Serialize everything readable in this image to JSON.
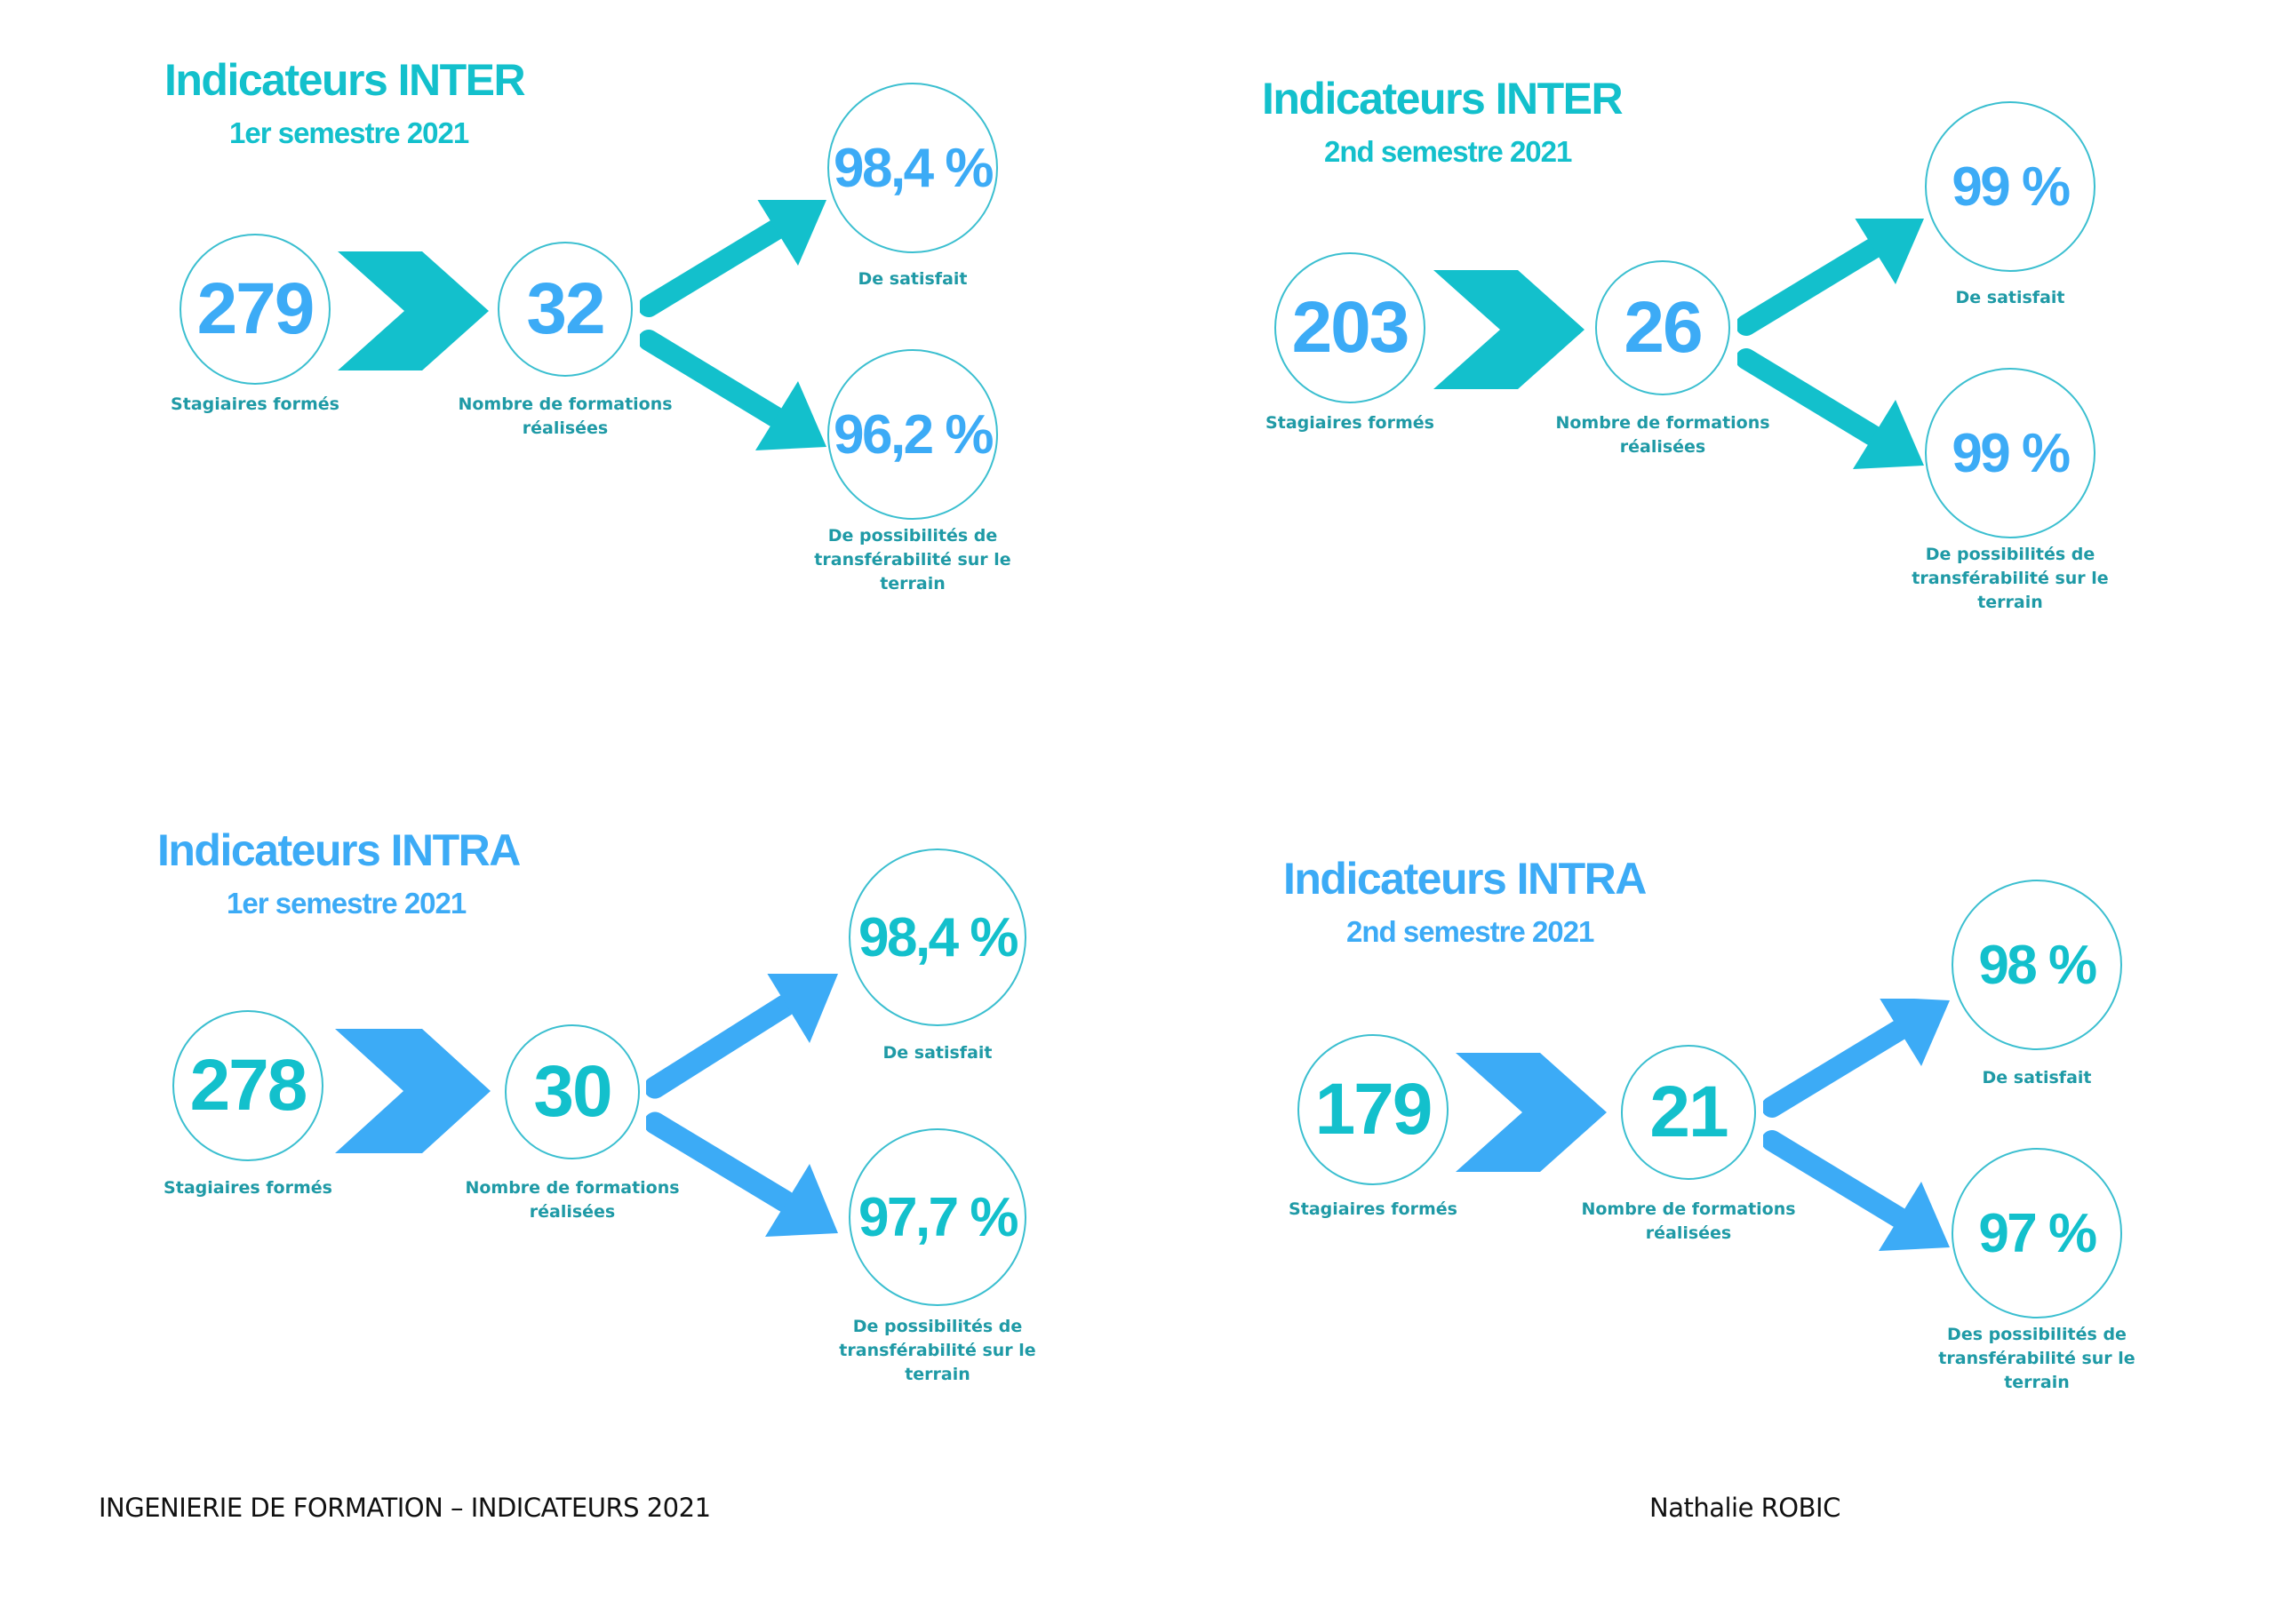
{
  "colors": {
    "teal": "#13c0cc",
    "blue": "#3cabf6",
    "label": "#1f9aa6",
    "circle_border": "#3bbfd0"
  },
  "icons": {
    "process": "chevron-right-icon",
    "outcome": "split-arrows-icon"
  },
  "panels": [
    {
      "title": "Indicateurs INTER",
      "subtitle": "1er semestre 2021",
      "trainees": {
        "value": "279",
        "label": "Stagiaires formés"
      },
      "sessions": {
        "value": "32",
        "label": "Nombre de formations réalisées"
      },
      "satisfaction": {
        "value": "98,4 %",
        "label": "De satisfait"
      },
      "transferability": {
        "value": "96,2 %",
        "label": "De possibilités de transférabilité sur le terrain"
      }
    },
    {
      "title": "Indicateurs INTER",
      "subtitle": "2nd semestre 2021",
      "trainees": {
        "value": "203",
        "label": "Stagiaires formés"
      },
      "sessions": {
        "value": "26",
        "label": "Nombre de formations réalisées"
      },
      "satisfaction": {
        "value": "99 %",
        "label": "De satisfait"
      },
      "transferability": {
        "value": "99 %",
        "label": "De possibilités de transférabilité sur le terrain"
      }
    },
    {
      "title": "Indicateurs INTRA",
      "subtitle": "1er semestre 2021",
      "trainees": {
        "value": "278",
        "label": "Stagiaires formés"
      },
      "sessions": {
        "value": "30",
        "label": "Nombre de formations réalisées"
      },
      "satisfaction": {
        "value": "98,4 %",
        "label": "De satisfait"
      },
      "transferability": {
        "value": "97,7 %",
        "label": "De possibilités de transférabilité sur le terrain"
      }
    },
    {
      "title": "Indicateurs INTRA",
      "subtitle": "2nd semestre 2021",
      "trainees": {
        "value": "179",
        "label": "Stagiaires formés"
      },
      "sessions": {
        "value": "21",
        "label": "Nombre de formations réalisées"
      },
      "satisfaction": {
        "value": "98 %",
        "label": "De satisfait"
      },
      "transferability": {
        "value": "97 %",
        "label": "Des possibilités de transférabilité sur le terrain"
      }
    }
  ],
  "footer": {
    "left": "INGENIERIE DE FORMATION – INDICATEURS 2021",
    "right": "Nathalie ROBIC"
  }
}
